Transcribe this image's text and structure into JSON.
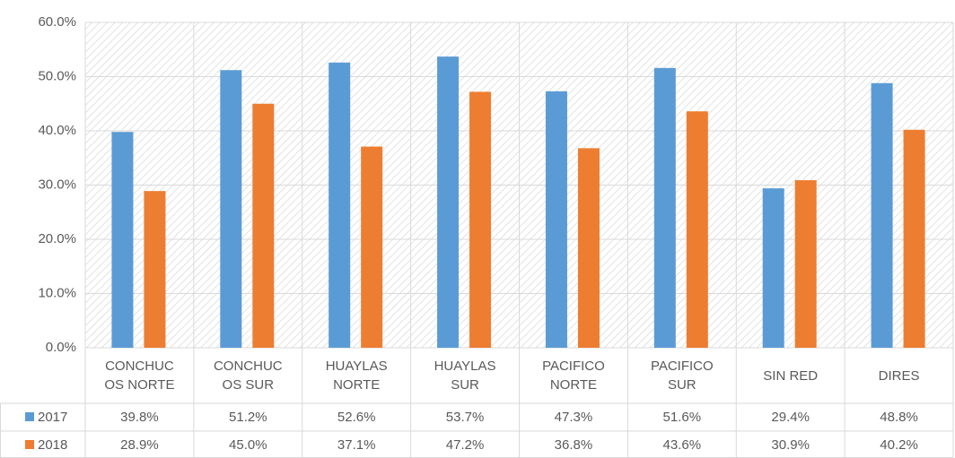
{
  "chart_data": {
    "type": "bar",
    "categories": [
      "CONCHUCOS NORTE",
      "CONCHUCOS SUR",
      "HUAYLAS NORTE",
      "HUAYLAS SUR",
      "PACIFICO NORTE",
      "PACIFICO SUR",
      "SIN RED",
      "DIRES"
    ],
    "series": [
      {
        "name": "2017",
        "color": "#5b9bd5",
        "values": [
          39.8,
          51.2,
          52.6,
          53.7,
          47.3,
          51.6,
          29.4,
          48.8
        ],
        "value_labels": [
          "39.8%",
          "51.2%",
          "52.6%",
          "53.7%",
          "47.3%",
          "51.6%",
          "29.4%",
          "48.8%"
        ]
      },
      {
        "name": "2018",
        "color": "#ed7d31",
        "values": [
          28.9,
          45.0,
          37.1,
          47.2,
          36.8,
          43.6,
          30.9,
          40.2
        ],
        "value_labels": [
          "28.9%",
          "45.0%",
          "37.1%",
          "47.2%",
          "36.8%",
          "43.6%",
          "30.9%",
          "40.2%"
        ]
      }
    ],
    "ylim": [
      0,
      60
    ],
    "yticks": [
      {
        "value": 0,
        "label": "0.0%"
      },
      {
        "value": 10,
        "label": "10.0%"
      },
      {
        "value": 20,
        "label": "20.0%"
      },
      {
        "value": 30,
        "label": "30.0%"
      },
      {
        "value": 40,
        "label": "40.0%"
      },
      {
        "value": 50,
        "label": "50.0%"
      },
      {
        "value": 60,
        "label": "60.0%"
      }
    ],
    "grid": true
  }
}
